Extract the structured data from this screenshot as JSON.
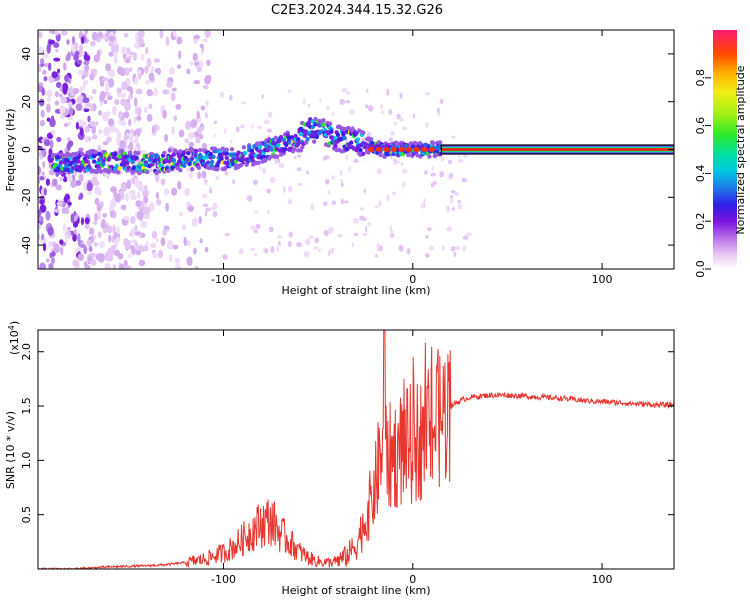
{
  "chart_data": [
    {
      "type": "heatmap",
      "title": "C2E3.2024.344.15.32.G26",
      "xlabel": "Height of straight line (km)",
      "ylabel": "Frequency (Hz)",
      "xlim": [
        -198,
        138
      ],
      "ylim": [
        -50,
        50
      ],
      "xticks": [
        -100,
        0,
        100
      ],
      "xtick_labels": [
        "-100",
        "0",
        "100"
      ],
      "yticks": [
        -40,
        -20,
        0,
        20,
        40
      ],
      "ytick_labels": [
        "-40",
        "-20",
        "0",
        "20",
        "40"
      ],
      "ridge": {
        "x": [
          -190,
          -180,
          -170,
          -160,
          -150,
          -140,
          -130,
          -120,
          -110,
          -100,
          -90,
          -80,
          -70,
          -60,
          -55,
          -50,
          -45,
          -40,
          -35,
          -30,
          -25,
          -20,
          -15,
          -10,
          -5,
          0,
          5,
          10,
          15
        ],
        "y": [
          -6,
          -6,
          -5,
          -5,
          -5,
          -6,
          -5,
          -4,
          -4,
          -4,
          -3,
          -1,
          2,
          4,
          9,
          8,
          6,
          5,
          4,
          3,
          2,
          1,
          0,
          0,
          0,
          0,
          0,
          0,
          0
        ]
      },
      "constant_line": {
        "x_start": 15,
        "x_end": 138,
        "y": 0
      },
      "colorbar": {
        "label": "Normalized spectral amplitude",
        "range": [
          0,
          1
        ],
        "ticks": [
          0.0,
          0.2,
          0.4,
          0.6,
          0.8
        ],
        "tick_labels": [
          "0.0",
          "0.2",
          "0.4",
          "0.6",
          "0.8"
        ]
      }
    },
    {
      "type": "line",
      "xlabel": "Height of straight line (km)",
      "ylabel": "SNR (10 * v/v)",
      "y_multiplier": "(x10",
      "y_multiplier_exp": "4",
      "y_multiplier_close": ")",
      "xlim": [
        -198,
        138
      ],
      "ylim": [
        0,
        2.2
      ],
      "xticks": [
        -100,
        0,
        100
      ],
      "xtick_labels": [
        "-100",
        "0",
        "100"
      ],
      "yticks": [
        0.5,
        1.0,
        1.5,
        2.0
      ],
      "ytick_labels": [
        "0.5",
        "1.0",
        "1.5",
        "2.0"
      ],
      "series": [
        {
          "name": "SNR",
          "color": "#e8352e",
          "x": [
            -198,
            -180,
            -160,
            -140,
            -130,
            -120,
            -110,
            -100,
            -95,
            -90,
            -85,
            -80,
            -75,
            -70,
            -65,
            -60,
            -55,
            -50,
            -45,
            -40,
            -35,
            -30,
            -25,
            -20,
            -17,
            -15,
            -10,
            -5,
            0,
            5,
            10,
            15,
            20,
            25,
            30,
            40,
            50,
            60,
            70,
            80,
            90,
            100,
            110,
            120,
            130,
            138
          ],
          "y": [
            0.0,
            0.0,
            0.02,
            0.03,
            0.04,
            0.06,
            0.09,
            0.15,
            0.2,
            0.27,
            0.35,
            0.42,
            0.45,
            0.33,
            0.25,
            0.16,
            0.1,
            0.07,
            0.06,
            0.07,
            0.12,
            0.22,
            0.45,
            0.75,
            1.05,
            1.0,
            1.05,
            1.12,
            1.15,
            1.22,
            1.3,
            1.4,
            1.5,
            1.55,
            1.58,
            1.6,
            1.6,
            1.59,
            1.58,
            1.57,
            1.55,
            1.54,
            1.53,
            1.52,
            1.51,
            1.51
          ]
        }
      ]
    }
  ],
  "colors": {
    "axis": "#000000",
    "line": "#e8352e",
    "ridge_core": "#ff1a1a"
  }
}
